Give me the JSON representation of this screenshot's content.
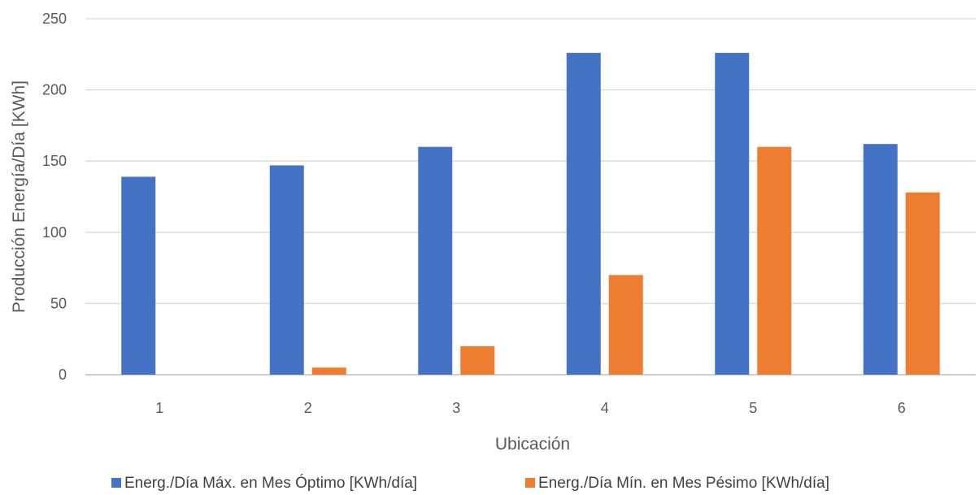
{
  "chart_data": {
    "type": "bar",
    "title": "",
    "xlabel": "Ubicación",
    "ylabel": "Producción Energía/Día [KWh]",
    "ylim": [
      0,
      250
    ],
    "yticks": [
      0,
      50,
      100,
      150,
      200,
      250
    ],
    "grid": true,
    "legend_position": "bottom",
    "categories": [
      "1",
      "2",
      "3",
      "4",
      "5",
      "6"
    ],
    "series": [
      {
        "name": "Energ./Día Máx. en Mes Óptimo [KWh/día]",
        "color": "#4472C4",
        "values": [
          139,
          147,
          160,
          226,
          226,
          162
        ]
      },
      {
        "name": "Energ./Día Mín. en Mes Pésimo [KWh/día]",
        "color": "#ED7D31",
        "values": [
          0,
          5,
          20,
          70,
          160,
          128
        ]
      }
    ]
  }
}
